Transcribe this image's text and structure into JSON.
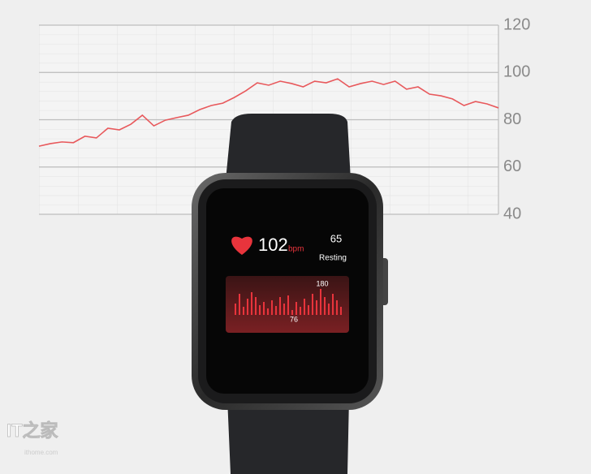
{
  "chart_data": {
    "type": "line",
    "series": [
      {
        "name": null,
        "color": "#e8595c",
        "values": [
          68.8,
          69.9,
          70.6,
          70.3,
          73,
          72.3,
          76.4,
          75.7,
          78.1,
          81.9,
          77.4,
          79.8,
          80.9,
          81.9,
          84.3,
          86,
          87,
          89.4,
          92.2,
          95.6,
          94.6,
          96.3,
          95.3,
          93.9,
          96.3,
          95.6,
          97.3,
          93.9,
          95.3,
          96.3,
          94.9,
          96.3,
          92.9,
          93.9,
          90.8,
          90.1,
          88.8,
          86,
          87.7,
          86.7,
          85
        ]
      }
    ],
    "ylim": [
      40,
      120
    ],
    "yticks": [
      40,
      60,
      80,
      100,
      120
    ],
    "grid": true
  },
  "watch": {
    "heart_rate": "102",
    "unit": "bpm",
    "resting_value": "65",
    "resting_label": "Resting",
    "graph_max": "180",
    "graph_min": "76"
  },
  "watermark": {
    "logo": "IT之家",
    "site": "ithome.com"
  }
}
